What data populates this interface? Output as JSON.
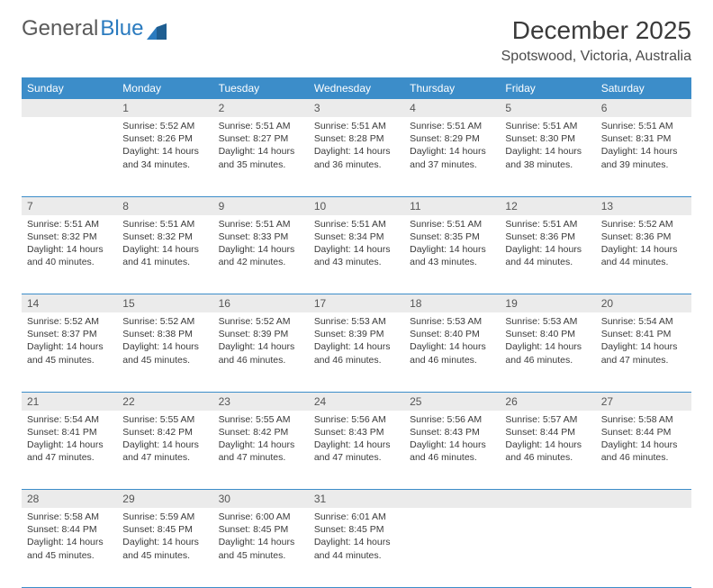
{
  "logo": {
    "text1": "General",
    "text2": "Blue"
  },
  "title": "December 2025",
  "location": "Spotswood, Victoria, Australia",
  "header_bg": "#3c8dc9",
  "daynum_bg": "#ebebeb",
  "days": [
    "Sunday",
    "Monday",
    "Tuesday",
    "Wednesday",
    "Thursday",
    "Friday",
    "Saturday"
  ],
  "weeks": [
    {
      "nums": [
        "",
        "1",
        "2",
        "3",
        "4",
        "5",
        "6"
      ],
      "cells": [
        null,
        {
          "sunrise": "Sunrise: 5:52 AM",
          "sunset": "Sunset: 8:26 PM",
          "day1": "Daylight: 14 hours",
          "day2": "and 34 minutes."
        },
        {
          "sunrise": "Sunrise: 5:51 AM",
          "sunset": "Sunset: 8:27 PM",
          "day1": "Daylight: 14 hours",
          "day2": "and 35 minutes."
        },
        {
          "sunrise": "Sunrise: 5:51 AM",
          "sunset": "Sunset: 8:28 PM",
          "day1": "Daylight: 14 hours",
          "day2": "and 36 minutes."
        },
        {
          "sunrise": "Sunrise: 5:51 AM",
          "sunset": "Sunset: 8:29 PM",
          "day1": "Daylight: 14 hours",
          "day2": "and 37 minutes."
        },
        {
          "sunrise": "Sunrise: 5:51 AM",
          "sunset": "Sunset: 8:30 PM",
          "day1": "Daylight: 14 hours",
          "day2": "and 38 minutes."
        },
        {
          "sunrise": "Sunrise: 5:51 AM",
          "sunset": "Sunset: 8:31 PM",
          "day1": "Daylight: 14 hours",
          "day2": "and 39 minutes."
        }
      ]
    },
    {
      "nums": [
        "7",
        "8",
        "9",
        "10",
        "11",
        "12",
        "13"
      ],
      "cells": [
        {
          "sunrise": "Sunrise: 5:51 AM",
          "sunset": "Sunset: 8:32 PM",
          "day1": "Daylight: 14 hours",
          "day2": "and 40 minutes."
        },
        {
          "sunrise": "Sunrise: 5:51 AM",
          "sunset": "Sunset: 8:32 PM",
          "day1": "Daylight: 14 hours",
          "day2": "and 41 minutes."
        },
        {
          "sunrise": "Sunrise: 5:51 AM",
          "sunset": "Sunset: 8:33 PM",
          "day1": "Daylight: 14 hours",
          "day2": "and 42 minutes."
        },
        {
          "sunrise": "Sunrise: 5:51 AM",
          "sunset": "Sunset: 8:34 PM",
          "day1": "Daylight: 14 hours",
          "day2": "and 43 minutes."
        },
        {
          "sunrise": "Sunrise: 5:51 AM",
          "sunset": "Sunset: 8:35 PM",
          "day1": "Daylight: 14 hours",
          "day2": "and 43 minutes."
        },
        {
          "sunrise": "Sunrise: 5:51 AM",
          "sunset": "Sunset: 8:36 PM",
          "day1": "Daylight: 14 hours",
          "day2": "and 44 minutes."
        },
        {
          "sunrise": "Sunrise: 5:52 AM",
          "sunset": "Sunset: 8:36 PM",
          "day1": "Daylight: 14 hours",
          "day2": "and 44 minutes."
        }
      ]
    },
    {
      "nums": [
        "14",
        "15",
        "16",
        "17",
        "18",
        "19",
        "20"
      ],
      "cells": [
        {
          "sunrise": "Sunrise: 5:52 AM",
          "sunset": "Sunset: 8:37 PM",
          "day1": "Daylight: 14 hours",
          "day2": "and 45 minutes."
        },
        {
          "sunrise": "Sunrise: 5:52 AM",
          "sunset": "Sunset: 8:38 PM",
          "day1": "Daylight: 14 hours",
          "day2": "and 45 minutes."
        },
        {
          "sunrise": "Sunrise: 5:52 AM",
          "sunset": "Sunset: 8:39 PM",
          "day1": "Daylight: 14 hours",
          "day2": "and 46 minutes."
        },
        {
          "sunrise": "Sunrise: 5:53 AM",
          "sunset": "Sunset: 8:39 PM",
          "day1": "Daylight: 14 hours",
          "day2": "and 46 minutes."
        },
        {
          "sunrise": "Sunrise: 5:53 AM",
          "sunset": "Sunset: 8:40 PM",
          "day1": "Daylight: 14 hours",
          "day2": "and 46 minutes."
        },
        {
          "sunrise": "Sunrise: 5:53 AM",
          "sunset": "Sunset: 8:40 PM",
          "day1": "Daylight: 14 hours",
          "day2": "and 46 minutes."
        },
        {
          "sunrise": "Sunrise: 5:54 AM",
          "sunset": "Sunset: 8:41 PM",
          "day1": "Daylight: 14 hours",
          "day2": "and 47 minutes."
        }
      ]
    },
    {
      "nums": [
        "21",
        "22",
        "23",
        "24",
        "25",
        "26",
        "27"
      ],
      "cells": [
        {
          "sunrise": "Sunrise: 5:54 AM",
          "sunset": "Sunset: 8:41 PM",
          "day1": "Daylight: 14 hours",
          "day2": "and 47 minutes."
        },
        {
          "sunrise": "Sunrise: 5:55 AM",
          "sunset": "Sunset: 8:42 PM",
          "day1": "Daylight: 14 hours",
          "day2": "and 47 minutes."
        },
        {
          "sunrise": "Sunrise: 5:55 AM",
          "sunset": "Sunset: 8:42 PM",
          "day1": "Daylight: 14 hours",
          "day2": "and 47 minutes."
        },
        {
          "sunrise": "Sunrise: 5:56 AM",
          "sunset": "Sunset: 8:43 PM",
          "day1": "Daylight: 14 hours",
          "day2": "and 47 minutes."
        },
        {
          "sunrise": "Sunrise: 5:56 AM",
          "sunset": "Sunset: 8:43 PM",
          "day1": "Daylight: 14 hours",
          "day2": "and 46 minutes."
        },
        {
          "sunrise": "Sunrise: 5:57 AM",
          "sunset": "Sunset: 8:44 PM",
          "day1": "Daylight: 14 hours",
          "day2": "and 46 minutes."
        },
        {
          "sunrise": "Sunrise: 5:58 AM",
          "sunset": "Sunset: 8:44 PM",
          "day1": "Daylight: 14 hours",
          "day2": "and 46 minutes."
        }
      ]
    },
    {
      "nums": [
        "28",
        "29",
        "30",
        "31",
        "",
        "",
        ""
      ],
      "cells": [
        {
          "sunrise": "Sunrise: 5:58 AM",
          "sunset": "Sunset: 8:44 PM",
          "day1": "Daylight: 14 hours",
          "day2": "and 45 minutes."
        },
        {
          "sunrise": "Sunrise: 5:59 AM",
          "sunset": "Sunset: 8:45 PM",
          "day1": "Daylight: 14 hours",
          "day2": "and 45 minutes."
        },
        {
          "sunrise": "Sunrise: 6:00 AM",
          "sunset": "Sunset: 8:45 PM",
          "day1": "Daylight: 14 hours",
          "day2": "and 45 minutes."
        },
        {
          "sunrise": "Sunrise: 6:01 AM",
          "sunset": "Sunset: 8:45 PM",
          "day1": "Daylight: 14 hours",
          "day2": "and 44 minutes."
        },
        null,
        null,
        null
      ]
    }
  ]
}
